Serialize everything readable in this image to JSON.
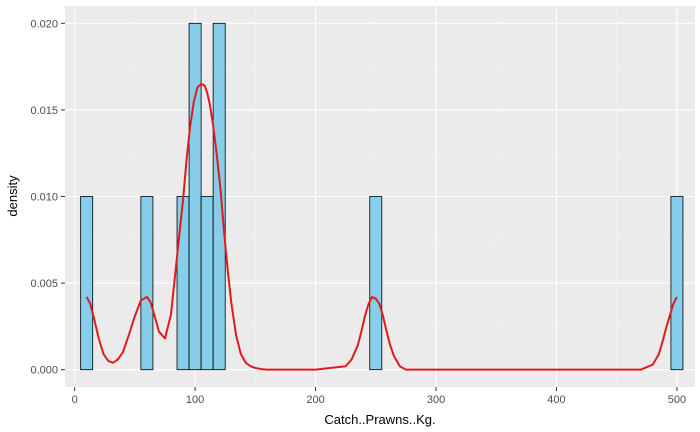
{
  "chart_data": {
    "type": "histogram",
    "title": "",
    "xlabel": "Catch..Prawns..Kg.",
    "ylabel": "density",
    "xlim": [
      -8,
      515
    ],
    "ylim": [
      -0.001,
      0.021
    ],
    "x_ticks": [
      0,
      100,
      200,
      300,
      400,
      500
    ],
    "x_tick_labels": [
      "0",
      "100",
      "200",
      "300",
      "400",
      "500"
    ],
    "y_ticks": [
      0.0,
      0.005,
      0.01,
      0.015,
      0.02
    ],
    "y_tick_labels": [
      "0.000",
      "0.005",
      "0.010",
      "0.015",
      "0.020"
    ],
    "grid": true,
    "histogram": {
      "bin_width": 10,
      "fill": "#87ceeb",
      "outline": "#000000",
      "bins": [
        {
          "x0": 5,
          "x1": 15,
          "density": 0.01
        },
        {
          "x0": 55,
          "x1": 65,
          "density": 0.01
        },
        {
          "x0": 85,
          "x1": 95,
          "density": 0.01
        },
        {
          "x0": 95,
          "x1": 105,
          "density": 0.02
        },
        {
          "x0": 105,
          "x1": 115,
          "density": 0.01
        },
        {
          "x0": 115,
          "x1": 125,
          "density": 0.02
        },
        {
          "x0": 245,
          "x1": 255,
          "density": 0.01
        },
        {
          "x0": 495,
          "x1": 505,
          "density": 0.01
        }
      ]
    },
    "density_curve": {
      "color": "#e31a1c",
      "x": [
        10,
        13,
        16,
        20,
        24,
        28,
        32,
        36,
        40,
        45,
        50,
        55,
        60,
        63,
        66,
        70,
        75,
        80,
        83,
        86,
        90,
        93,
        96,
        99,
        102,
        105,
        108,
        110,
        112,
        115,
        118,
        121,
        124,
        127,
        130,
        134,
        138,
        142,
        146,
        150,
        155,
        160,
        170,
        200,
        225,
        230,
        235,
        238,
        241,
        244,
        247,
        250,
        253,
        256,
        259,
        262,
        265,
        270,
        275,
        300,
        400,
        470,
        480,
        485,
        488,
        491,
        494,
        497,
        500
      ],
      "y": [
        0.0042,
        0.0038,
        0.003,
        0.0018,
        0.0009,
        0.0005,
        0.0004,
        0.0006,
        0.001,
        0.002,
        0.0031,
        0.004,
        0.0042,
        0.0039,
        0.0032,
        0.0022,
        0.0018,
        0.0032,
        0.0052,
        0.0072,
        0.0098,
        0.0122,
        0.0141,
        0.0155,
        0.0163,
        0.0165,
        0.0164,
        0.016,
        0.0154,
        0.0141,
        0.0124,
        0.0105,
        0.008,
        0.0058,
        0.0039,
        0.002,
        0.0009,
        0.0004,
        0.0002,
        0.0001,
        3e-05,
        0.0,
        0.0,
        0.0,
        0.0002,
        0.0006,
        0.0014,
        0.0022,
        0.0031,
        0.0038,
        0.0042,
        0.0041,
        0.0038,
        0.0031,
        0.0022,
        0.0014,
        0.0008,
        0.0002,
        0.0,
        0.0,
        0.0,
        0.0,
        0.0003,
        0.0009,
        0.0016,
        0.0024,
        0.0031,
        0.0038,
        0.0042
      ]
    }
  }
}
